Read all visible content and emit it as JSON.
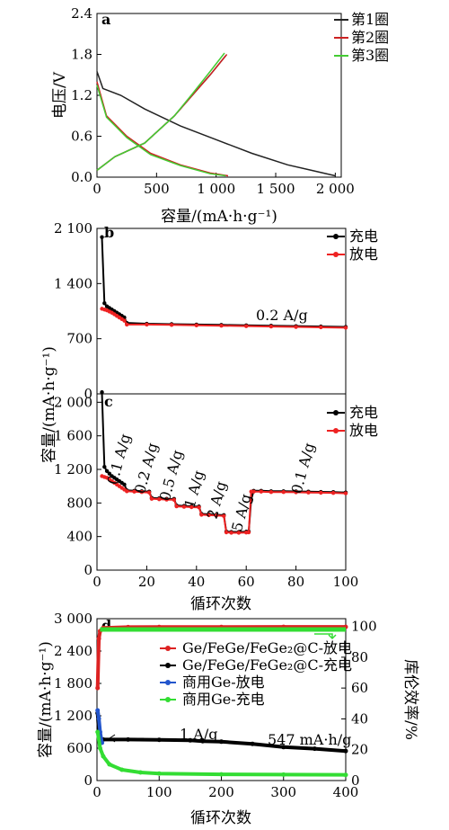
{
  "chart_data": [
    {
      "panel": "a",
      "type": "line",
      "xlabel": "容量/(mA·h·g⁻¹)",
      "ylabel": "电压/V",
      "xlim": [
        0,
        2050
      ],
      "ylim": [
        0,
        2.4
      ],
      "xticks": [
        "0",
        "500",
        "1 000",
        "1 500",
        "2 000"
      ],
      "xtick_values": [
        0,
        500,
        1000,
        1500,
        2000
      ],
      "yticks": [
        "0.0",
        "0.6",
        "1.2",
        "1.8",
        "2.4"
      ],
      "ytick_values": [
        0,
        0.6,
        1.2,
        1.8,
        2.4
      ],
      "legend_position": "top-right",
      "series": [
        {
          "name": "第1圈",
          "color": "#222222",
          "discharge": [
            [
              0,
              1.55
            ],
            [
              50,
              1.3
            ],
            [
              200,
              1.2
            ],
            [
              400,
              1.0
            ],
            [
              700,
              0.75
            ],
            [
              1000,
              0.55
            ],
            [
              1300,
              0.35
            ],
            [
              1600,
              0.18
            ],
            [
              1800,
              0.1
            ],
            [
              2000,
              0.02
            ]
          ],
          "charge": [
            [
              0,
              0.1
            ],
            [
              150,
              0.3
            ],
            [
              400,
              0.5
            ],
            [
              650,
              0.9
            ],
            [
              800,
              1.2
            ],
            [
              950,
              1.5
            ],
            [
              1080,
              1.78
            ]
          ]
        },
        {
          "name": "第2圈",
          "color": "#cc2222",
          "discharge": [
            [
              0,
              1.4
            ],
            [
              80,
              0.9
            ],
            [
              250,
              0.6
            ],
            [
              450,
              0.35
            ],
            [
              700,
              0.18
            ],
            [
              950,
              0.06
            ],
            [
              1100,
              0.02
            ]
          ],
          "charge": [
            [
              0,
              0.1
            ],
            [
              150,
              0.3
            ],
            [
              400,
              0.5
            ],
            [
              650,
              0.9
            ],
            [
              800,
              1.2
            ],
            [
              950,
              1.5
            ],
            [
              1090,
              1.8
            ]
          ]
        },
        {
          "name": "第3圈",
          "color": "#44cc33",
          "discharge": [
            [
              0,
              1.35
            ],
            [
              80,
              0.88
            ],
            [
              250,
              0.58
            ],
            [
              450,
              0.33
            ],
            [
              700,
              0.17
            ],
            [
              950,
              0.05
            ],
            [
              1080,
              0.02
            ]
          ],
          "charge": [
            [
              0,
              0.1
            ],
            [
              150,
              0.3
            ],
            [
              400,
              0.5
            ],
            [
              650,
              0.9
            ],
            [
              800,
              1.22
            ],
            [
              950,
              1.55
            ],
            [
              1070,
              1.82
            ]
          ]
        }
      ]
    },
    {
      "panel": "b",
      "type": "scatter",
      "ylabel": "容量/(mA·h·g⁻¹)",
      "xlim": [
        0,
        100
      ],
      "ylim": [
        0,
        2100
      ],
      "yticks": [
        "0",
        "700",
        "1 400",
        "2 100"
      ],
      "ytick_values": [
        0,
        700,
        1400,
        2100
      ],
      "annotation": "0.2 A/g",
      "legend_position": "top-right",
      "series": [
        {
          "name": "充电",
          "color": "#000000",
          "points": [
            [
              2,
              1990
            ],
            [
              3,
              1150
            ],
            [
              4,
              1110
            ],
            [
              5,
              1090
            ],
            [
              6,
              1070
            ],
            [
              7,
              1050
            ],
            [
              8,
              1030
            ],
            [
              9,
              1010
            ],
            [
              10,
              990
            ],
            [
              11,
              970
            ],
            [
              12,
              900
            ],
            [
              20,
              890
            ],
            [
              30,
              885
            ],
            [
              40,
              880
            ],
            [
              50,
              875
            ],
            [
              60,
              870
            ],
            [
              70,
              865
            ],
            [
              80,
              860
            ],
            [
              90,
              855
            ],
            [
              100,
              850
            ]
          ]
        },
        {
          "name": "放电",
          "color": "#ee2222",
          "points": [
            [
              2,
              1080
            ],
            [
              3,
              1070
            ],
            [
              4,
              1060
            ],
            [
              5,
              1045
            ],
            [
              6,
              1030
            ],
            [
              7,
              1010
            ],
            [
              8,
              990
            ],
            [
              9,
              970
            ],
            [
              10,
              950
            ],
            [
              11,
              930
            ],
            [
              12,
              880
            ],
            [
              20,
              880
            ],
            [
              30,
              875
            ],
            [
              40,
              870
            ],
            [
              50,
              865
            ],
            [
              60,
              860
            ],
            [
              70,
              855
            ],
            [
              80,
              850
            ],
            [
              90,
              845
            ],
            [
              100,
              840
            ]
          ]
        }
      ]
    },
    {
      "panel": "c",
      "type": "scatter",
      "xlabel": "循环次数",
      "xlim": [
        0,
        100
      ],
      "ylim": [
        0,
        2100
      ],
      "xticks": [
        "0",
        "20",
        "40",
        "60",
        "80",
        "100"
      ],
      "xtick_values": [
        0,
        20,
        40,
        60,
        80,
        100
      ],
      "yticks": [
        "0",
        "400",
        "800",
        "1 200",
        "1 600",
        "2 000"
      ],
      "ytick_values": [
        0,
        400,
        800,
        1200,
        1600,
        2000
      ],
      "legend_position": "top-right",
      "rate_labels": [
        {
          "text": "0.1 A/g",
          "x": 8
        },
        {
          "text": "0.2 A/g",
          "x": 19
        },
        {
          "text": "0.5 A/g",
          "x": 29
        },
        {
          "text": "1 A/g",
          "x": 39
        },
        {
          "text": "2 A/g",
          "x": 48
        },
        {
          "text": "5 A/g",
          "x": 58
        },
        {
          "text": "0.1 A/g",
          "x": 82
        }
      ],
      "series": [
        {
          "name": "充电",
          "color": "#000000",
          "points": [
            [
              2,
              2120
            ],
            [
              3,
              1230
            ],
            [
              4,
              1180
            ],
            [
              5,
              1150
            ],
            [
              6,
              1120
            ],
            [
              7,
              1100
            ],
            [
              8,
              1080
            ],
            [
              9,
              1060
            ],
            [
              10,
              1040
            ],
            [
              11,
              1020
            ],
            [
              12,
              950
            ],
            [
              15,
              945
            ],
            [
              18,
              940
            ],
            [
              21,
              935
            ],
            [
              22,
              860
            ],
            [
              25,
              855
            ],
            [
              28,
              850
            ],
            [
              31,
              848
            ],
            [
              32,
              770
            ],
            [
              35,
              765
            ],
            [
              38,
              760
            ],
            [
              41,
              758
            ],
            [
              42,
              670
            ],
            [
              45,
              665
            ],
            [
              48,
              660
            ],
            [
              51,
              655
            ],
            [
              52,
              460
            ],
            [
              54,
              455
            ],
            [
              57,
              455
            ],
            [
              60,
              458
            ],
            [
              61,
              460
            ],
            [
              62,
              840
            ],
            [
              63,
              945
            ],
            [
              66,
              945
            ],
            [
              70,
              940
            ],
            [
              75,
              940
            ],
            [
              80,
              938
            ],
            [
              85,
              935
            ],
            [
              90,
              932
            ],
            [
              95,
              930
            ],
            [
              100,
              925
            ]
          ]
        },
        {
          "name": "放电",
          "color": "#ee2222",
          "points": [
            [
              2,
              1120
            ],
            [
              3,
              1110
            ],
            [
              4,
              1100
            ],
            [
              5,
              1080
            ],
            [
              6,
              1060
            ],
            [
              7,
              1040
            ],
            [
              8,
              1020
            ],
            [
              9,
              1000
            ],
            [
              10,
              980
            ],
            [
              11,
              960
            ],
            [
              12,
              940
            ],
            [
              15,
              935
            ],
            [
              18,
              930
            ],
            [
              21,
              925
            ],
            [
              22,
              850
            ],
            [
              25,
              845
            ],
            [
              28,
              840
            ],
            [
              31,
              838
            ],
            [
              32,
              760
            ],
            [
              35,
              755
            ],
            [
              38,
              750
            ],
            [
              41,
              748
            ],
            [
              42,
              660
            ],
            [
              45,
              655
            ],
            [
              48,
              650
            ],
            [
              51,
              645
            ],
            [
              52,
              450
            ],
            [
              54,
              445
            ],
            [
              57,
              445
            ],
            [
              60,
              448
            ],
            [
              61,
              450
            ],
            [
              62,
              935
            ],
            [
              63,
              935
            ],
            [
              66,
              935
            ],
            [
              70,
              930
            ],
            [
              75,
              930
            ],
            [
              80,
              928
            ],
            [
              85,
              925
            ],
            [
              90,
              922
            ],
            [
              95,
              920
            ],
            [
              100,
              915
            ]
          ]
        }
      ]
    },
    {
      "panel": "d",
      "type": "scatter",
      "xlabel": "循环次数",
      "ylabel": "容量/(mA·h·g⁻¹)",
      "ylabel_right": "库伦效率/%",
      "xlim": [
        0,
        400
      ],
      "ylim": [
        0,
        3000
      ],
      "ylim_right": [
        0,
        105
      ],
      "xticks": [
        "0",
        "100",
        "200",
        "300",
        "400"
      ],
      "xtick_values": [
        0,
        100,
        200,
        300,
        400
      ],
      "yticks": [
        "0",
        "600",
        "1 200",
        "1 800",
        "2 400",
        "3 000"
      ],
      "ytick_values": [
        0,
        600,
        1200,
        1800,
        2400,
        3000
      ],
      "yticks_right": [
        "0",
        "20",
        "40",
        "60",
        "80",
        "100"
      ],
      "ytick_values_right": [
        0,
        20,
        40,
        60,
        80,
        100
      ],
      "annotations": [
        "1 A/g",
        "547 mA·h/g"
      ],
      "legend_position": "right",
      "series": [
        {
          "name": "Ge/FeGe/FeGe₂@C-放电",
          "color": "#dd2222",
          "axis": "right",
          "points": [
            [
              1,
              60
            ],
            [
              3,
              92
            ],
            [
              5,
              97
            ],
            [
              10,
              99
            ],
            [
              50,
              99.5
            ],
            [
              100,
              99.6
            ],
            [
              200,
              99.6
            ],
            [
              300,
              99.7
            ],
            [
              400,
              99.7
            ]
          ]
        },
        {
          "name": "Ge/FeGe/FeGe₂@C-充电",
          "color": "#000000",
          "axis": "left",
          "points": [
            [
              1,
              1250
            ],
            [
              3,
              900
            ],
            [
              5,
              780
            ],
            [
              10,
              760
            ],
            [
              50,
              760
            ],
            [
              100,
              755
            ],
            [
              150,
              745
            ],
            [
              170,
              730
            ],
            [
              200,
              720
            ],
            [
              250,
              680
            ],
            [
              300,
              620
            ],
            [
              350,
              590
            ],
            [
              400,
              547
            ]
          ]
        },
        {
          "name": "商用Ge-放电",
          "color": "#2255cc",
          "axis": "left",
          "points": [
            [
              1,
              1300
            ],
            [
              3,
              1150
            ],
            [
              5,
              900
            ],
            [
              8,
              700
            ]
          ]
        },
        {
          "name": "商用Ge-充电",
          "color": "#33dd33",
          "axis": "left",
          "points": [
            [
              1,
              900
            ],
            [
              5,
              600
            ],
            [
              10,
              450
            ],
            [
              20,
              300
            ],
            [
              40,
              200
            ],
            [
              70,
              150
            ],
            [
              100,
              130
            ],
            [
              200,
              115
            ],
            [
              300,
              110
            ],
            [
              400,
              105
            ]
          ]
        }
      ]
    }
  ]
}
